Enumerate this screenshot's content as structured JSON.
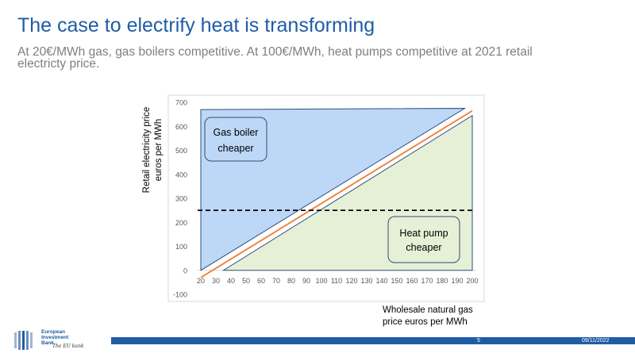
{
  "slide": {
    "title": "The case to electrify heat is transforming",
    "subtitle": "At 20€/MWh gas, gas boilers competitive. At 100€/MWh, heat pumps competitive at 2021 retail electricty price.",
    "page_number": "5",
    "date": "09/11/2022"
  },
  "logo": {
    "line1": "European",
    "line2": "Investment",
    "line3": "Bank",
    "signature": "The EU bank"
  },
  "colors": {
    "title": "#1f5ca6",
    "gas_region": "#bdd7f6",
    "heatpump_region": "#e6f0d6",
    "region_border": "#2f4d78",
    "orange_line": "#ed7d31",
    "dashed_line": "#000000",
    "footer_bar": "#1f5ca6"
  },
  "chart_data": {
    "type": "area",
    "xlabel": "Wholesale natural gas price euros per MWh",
    "ylabel": "Retail electricity price euros per MWh",
    "xlim": [
      20,
      200
    ],
    "ylim": [
      -100,
      700
    ],
    "x_ticks": [
      "20",
      "30",
      "40",
      "50",
      "60",
      "70",
      "80",
      "90",
      "100",
      "110",
      "120",
      "130",
      "140",
      "150",
      "160",
      "170",
      "180",
      "190",
      "200"
    ],
    "y_ticks": [
      "-100",
      "0",
      "100",
      "200",
      "300",
      "400",
      "500",
      "600",
      "700"
    ],
    "gas_boiler_region": {
      "label": "Gas boiler cheaper",
      "points": [
        [
          20,
          0
        ],
        [
          20,
          670
        ],
        [
          195,
          675
        ]
      ]
    },
    "heat_pump_region": {
      "label": "Heat pump cheaper",
      "points": [
        [
          35,
          0
        ],
        [
          200,
          0
        ],
        [
          200,
          645
        ]
      ]
    },
    "orange_line": {
      "points": [
        [
          20,
          -30
        ],
        [
          200,
          665
        ]
      ]
    },
    "dashed_line": {
      "y": 250,
      "x": [
        20,
        200
      ]
    }
  }
}
